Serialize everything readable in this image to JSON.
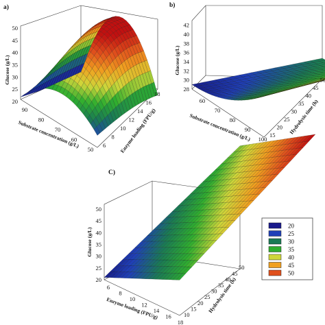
{
  "chart_data": [
    {
      "type": "surface",
      "panel_label": "a)",
      "x": {
        "label": "Substrate concentration (g/L)",
        "ticks": [
          90,
          80,
          70,
          60,
          50
        ]
      },
      "y": {
        "label": "Enzyme loading (FPU/g)",
        "ticks": [
          6,
          8,
          10,
          12,
          14,
          16,
          18
        ]
      },
      "z": {
        "label": "Glucose (g/L)",
        "ticks": [
          20,
          25,
          30,
          35,
          40,
          45,
          50
        ],
        "range": [
          20,
          50
        ]
      },
      "surface_shape": "dome peaking near mid substrate concentration and high enzyme loading"
    },
    {
      "type": "surface",
      "panel_label": "b)",
      "x": {
        "label": "Substrate concentration (g/L)",
        "ticks": [
          60,
          70,
          80,
          90,
          100
        ]
      },
      "y": {
        "label": "Hydrolysis time (h)",
        "ticks": [
          15,
          20,
          25,
          30,
          35,
          40,
          45,
          50
        ]
      },
      "z": {
        "label": "Glucose (g/L)",
        "ticks": [
          28,
          30,
          32,
          34,
          36,
          38,
          40,
          42
        ],
        "range": [
          28,
          43
        ]
      },
      "surface_shape": "saddle rising toward high substrate concentration and long hydrolysis time"
    },
    {
      "type": "surface",
      "panel_label": "C)",
      "x": {
        "label": "Enzyme loading (FPU/g)",
        "ticks": [
          6,
          8,
          10,
          12,
          14,
          16,
          18
        ]
      },
      "y": {
        "label": "Hydrolysis time (h)",
        "ticks": [
          10,
          15,
          20,
          25,
          30,
          35,
          40,
          45,
          50
        ]
      },
      "z": {
        "label": "Glucose (g/L)",
        "ticks": [
          20,
          25,
          30,
          35,
          40,
          45,
          50
        ],
        "range": [
          20,
          52
        ]
      },
      "surface_shape": "nearly planar rise with enzyme loading and hydrolysis time"
    }
  ],
  "legend": {
    "entries": [
      {
        "label": "20",
        "color": "#1a1a8c"
      },
      {
        "label": "25",
        "color": "#1f3fb8"
      },
      {
        "label": "30",
        "color": "#1a7a55"
      },
      {
        "label": "35",
        "color": "#2fae2f"
      },
      {
        "label": "40",
        "color": "#cfd63a"
      },
      {
        "label": "45",
        "color": "#f0a020"
      },
      {
        "label": "50",
        "color": "#e0501c"
      }
    ]
  },
  "colormap": [
    "#15157a",
    "#1f3fb8",
    "#1a7a55",
    "#2fae2f",
    "#cfd63a",
    "#f0a020",
    "#e0501c",
    "#c01010"
  ]
}
